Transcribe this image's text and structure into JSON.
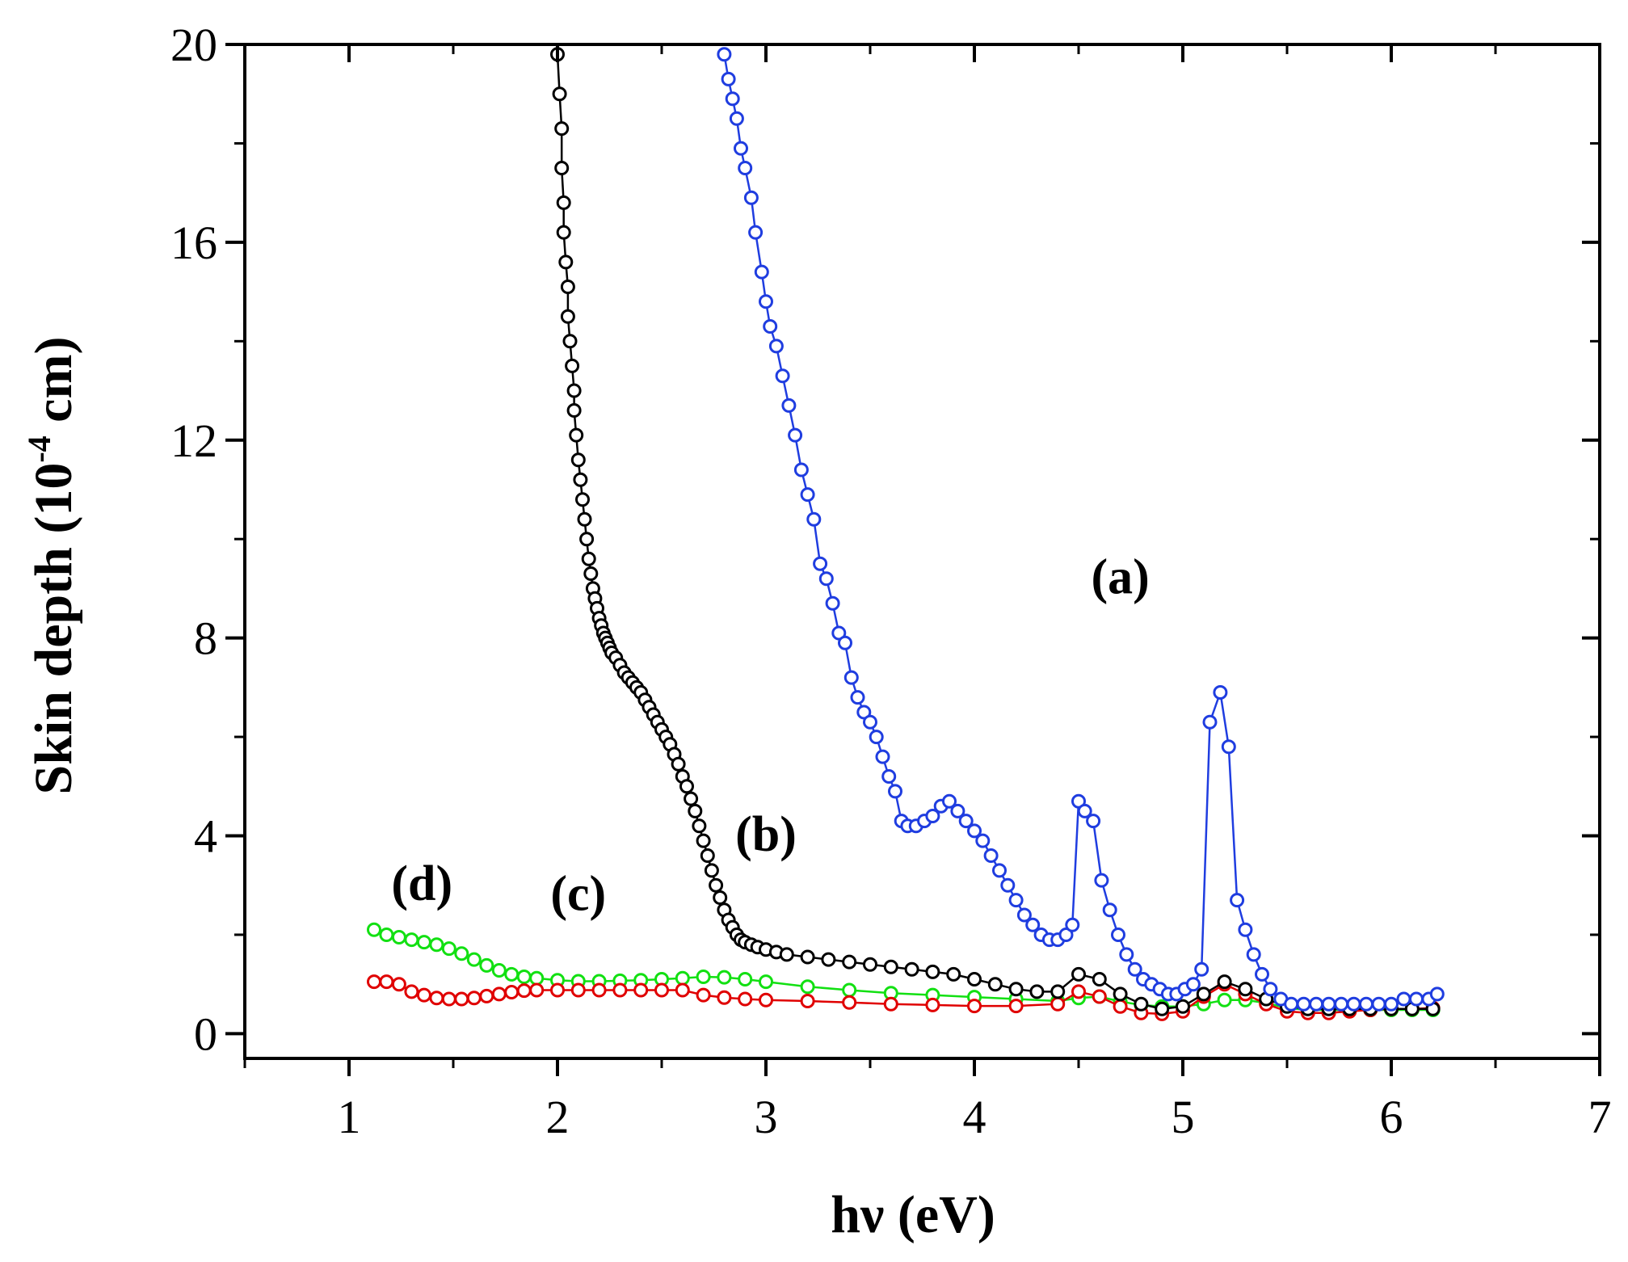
{
  "chart_data": {
    "type": "scatter",
    "title": "",
    "xlabel": "hν (eV)",
    "ylabel_main": "Skin depth (10",
    "ylabel_sup": "-4",
    "ylabel_tail": " cm)",
    "xlim": [
      0.5,
      7
    ],
    "ylim": [
      -0.5,
      20
    ],
    "x_ticks": [
      1,
      2,
      3,
      4,
      5,
      6,
      7
    ],
    "x_tick_labels": [
      "1",
      "2",
      "3",
      "4",
      "5",
      "6",
      "7"
    ],
    "y_ticks": [
      0,
      4,
      8,
      12,
      16,
      20
    ],
    "y_tick_labels": [
      "0",
      "4",
      "8",
      "12",
      "16",
      "20"
    ],
    "grid": false,
    "series": [
      {
        "name": "(a)",
        "color": "#1f3de0",
        "label_pos": [
          4.7,
          8.9
        ],
        "points": [
          [
            2.8,
            19.8
          ],
          [
            2.82,
            19.3
          ],
          [
            2.84,
            18.9
          ],
          [
            2.86,
            18.5
          ],
          [
            2.88,
            17.9
          ],
          [
            2.9,
            17.5
          ],
          [
            2.93,
            16.9
          ],
          [
            2.95,
            16.2
          ],
          [
            2.98,
            15.4
          ],
          [
            3.0,
            14.8
          ],
          [
            3.02,
            14.3
          ],
          [
            3.05,
            13.9
          ],
          [
            3.08,
            13.3
          ],
          [
            3.11,
            12.7
          ],
          [
            3.14,
            12.1
          ],
          [
            3.17,
            11.4
          ],
          [
            3.2,
            10.9
          ],
          [
            3.23,
            10.4
          ],
          [
            3.26,
            9.5
          ],
          [
            3.29,
            9.2
          ],
          [
            3.32,
            8.7
          ],
          [
            3.35,
            8.1
          ],
          [
            3.38,
            7.9
          ],
          [
            3.41,
            7.2
          ],
          [
            3.44,
            6.8
          ],
          [
            3.47,
            6.5
          ],
          [
            3.5,
            6.3
          ],
          [
            3.53,
            6.0
          ],
          [
            3.56,
            5.6
          ],
          [
            3.59,
            5.2
          ],
          [
            3.62,
            4.9
          ],
          [
            3.65,
            4.3
          ],
          [
            3.68,
            4.2
          ],
          [
            3.72,
            4.2
          ],
          [
            3.76,
            4.3
          ],
          [
            3.8,
            4.4
          ],
          [
            3.84,
            4.6
          ],
          [
            3.88,
            4.7
          ],
          [
            3.92,
            4.5
          ],
          [
            3.96,
            4.3
          ],
          [
            4.0,
            4.1
          ],
          [
            4.04,
            3.9
          ],
          [
            4.08,
            3.6
          ],
          [
            4.12,
            3.3
          ],
          [
            4.16,
            3.0
          ],
          [
            4.2,
            2.7
          ],
          [
            4.24,
            2.4
          ],
          [
            4.28,
            2.2
          ],
          [
            4.32,
            2.0
          ],
          [
            4.36,
            1.9
          ],
          [
            4.4,
            1.9
          ],
          [
            4.44,
            2.0
          ],
          [
            4.47,
            2.2
          ],
          [
            4.5,
            4.7
          ],
          [
            4.53,
            4.5
          ],
          [
            4.57,
            4.3
          ],
          [
            4.61,
            3.1
          ],
          [
            4.65,
            2.5
          ],
          [
            4.69,
            2.0
          ],
          [
            4.73,
            1.6
          ],
          [
            4.77,
            1.3
          ],
          [
            4.81,
            1.1
          ],
          [
            4.85,
            1.0
          ],
          [
            4.89,
            0.9
          ],
          [
            4.93,
            0.8
          ],
          [
            4.97,
            0.8
          ],
          [
            5.01,
            0.9
          ],
          [
            5.05,
            1.0
          ],
          [
            5.09,
            1.3
          ],
          [
            5.13,
            6.3
          ],
          [
            5.18,
            6.9
          ],
          [
            5.22,
            5.8
          ],
          [
            5.26,
            2.7
          ],
          [
            5.3,
            2.1
          ],
          [
            5.34,
            1.6
          ],
          [
            5.38,
            1.2
          ],
          [
            5.42,
            0.9
          ],
          [
            5.47,
            0.7
          ],
          [
            5.52,
            0.6
          ],
          [
            5.58,
            0.6
          ],
          [
            5.64,
            0.6
          ],
          [
            5.7,
            0.6
          ],
          [
            5.76,
            0.6
          ],
          [
            5.82,
            0.6
          ],
          [
            5.88,
            0.6
          ],
          [
            5.94,
            0.6
          ],
          [
            6.0,
            0.6
          ],
          [
            6.06,
            0.7
          ],
          [
            6.12,
            0.7
          ],
          [
            6.18,
            0.7
          ],
          [
            6.22,
            0.8
          ]
        ]
      },
      {
        "name": "(b)",
        "color": "#000000",
        "label_pos": [
          3.0,
          3.7
        ],
        "points": [
          [
            2.0,
            19.8
          ],
          [
            2.01,
            19.0
          ],
          [
            2.02,
            18.3
          ],
          [
            2.02,
            17.5
          ],
          [
            2.03,
            16.8
          ],
          [
            2.03,
            16.2
          ],
          [
            2.04,
            15.6
          ],
          [
            2.05,
            15.1
          ],
          [
            2.05,
            14.5
          ],
          [
            2.06,
            14.0
          ],
          [
            2.07,
            13.5
          ],
          [
            2.08,
            13.0
          ],
          [
            2.08,
            12.6
          ],
          [
            2.09,
            12.1
          ],
          [
            2.1,
            11.6
          ],
          [
            2.11,
            11.2
          ],
          [
            2.12,
            10.8
          ],
          [
            2.13,
            10.4
          ],
          [
            2.14,
            10.0
          ],
          [
            2.15,
            9.6
          ],
          [
            2.16,
            9.3
          ],
          [
            2.17,
            9.0
          ],
          [
            2.18,
            8.8
          ],
          [
            2.19,
            8.6
          ],
          [
            2.2,
            8.4
          ],
          [
            2.21,
            8.25
          ],
          [
            2.22,
            8.1
          ],
          [
            2.23,
            8.0
          ],
          [
            2.24,
            7.9
          ],
          [
            2.25,
            7.8
          ],
          [
            2.26,
            7.7
          ],
          [
            2.28,
            7.6
          ],
          [
            2.3,
            7.45
          ],
          [
            2.32,
            7.3
          ],
          [
            2.34,
            7.2
          ],
          [
            2.36,
            7.1
          ],
          [
            2.38,
            7.0
          ],
          [
            2.4,
            6.9
          ],
          [
            2.42,
            6.75
          ],
          [
            2.44,
            6.6
          ],
          [
            2.46,
            6.45
          ],
          [
            2.48,
            6.3
          ],
          [
            2.5,
            6.15
          ],
          [
            2.52,
            6.0
          ],
          [
            2.54,
            5.85
          ],
          [
            2.56,
            5.65
          ],
          [
            2.58,
            5.45
          ],
          [
            2.6,
            5.2
          ],
          [
            2.62,
            5.0
          ],
          [
            2.64,
            4.75
          ],
          [
            2.66,
            4.5
          ],
          [
            2.68,
            4.2
          ],
          [
            2.7,
            3.9
          ],
          [
            2.72,
            3.6
          ],
          [
            2.74,
            3.3
          ],
          [
            2.76,
            3.0
          ],
          [
            2.78,
            2.75
          ],
          [
            2.8,
            2.5
          ],
          [
            2.82,
            2.3
          ],
          [
            2.84,
            2.15
          ],
          [
            2.86,
            2.0
          ],
          [
            2.88,
            1.9
          ],
          [
            2.9,
            1.85
          ],
          [
            2.93,
            1.8
          ],
          [
            2.96,
            1.75
          ],
          [
            3.0,
            1.7
          ],
          [
            3.05,
            1.65
          ],
          [
            3.1,
            1.6
          ],
          [
            3.2,
            1.55
          ],
          [
            3.3,
            1.5
          ],
          [
            3.4,
            1.45
          ],
          [
            3.5,
            1.4
          ],
          [
            3.6,
            1.35
          ],
          [
            3.7,
            1.3
          ],
          [
            3.8,
            1.25
          ],
          [
            3.9,
            1.2
          ],
          [
            4.0,
            1.1
          ],
          [
            4.1,
            1.0
          ],
          [
            4.2,
            0.9
          ],
          [
            4.3,
            0.85
          ],
          [
            4.4,
            0.85
          ],
          [
            4.5,
            1.2
          ],
          [
            4.6,
            1.1
          ],
          [
            4.7,
            0.8
          ],
          [
            4.8,
            0.6
          ],
          [
            4.9,
            0.5
          ],
          [
            5.0,
            0.55
          ],
          [
            5.1,
            0.8
          ],
          [
            5.2,
            1.05
          ],
          [
            5.3,
            0.9
          ],
          [
            5.4,
            0.7
          ],
          [
            5.5,
            0.55
          ],
          [
            5.6,
            0.5
          ],
          [
            5.7,
            0.5
          ],
          [
            5.8,
            0.5
          ],
          [
            5.9,
            0.5
          ],
          [
            6.0,
            0.5
          ],
          [
            6.1,
            0.5
          ],
          [
            6.2,
            0.5
          ]
        ]
      },
      {
        "name": "(c)",
        "color": "#e00000",
        "label_pos": [
          2.1,
          2.5
        ],
        "points": [
          [
            1.12,
            1.05
          ],
          [
            1.18,
            1.05
          ],
          [
            1.24,
            1.0
          ],
          [
            1.3,
            0.85
          ],
          [
            1.36,
            0.78
          ],
          [
            1.42,
            0.72
          ],
          [
            1.48,
            0.7
          ],
          [
            1.54,
            0.7
          ],
          [
            1.6,
            0.72
          ],
          [
            1.66,
            0.76
          ],
          [
            1.72,
            0.8
          ],
          [
            1.78,
            0.84
          ],
          [
            1.84,
            0.87
          ],
          [
            1.9,
            0.88
          ],
          [
            2.0,
            0.88
          ],
          [
            2.1,
            0.88
          ],
          [
            2.2,
            0.88
          ],
          [
            2.3,
            0.88
          ],
          [
            2.4,
            0.88
          ],
          [
            2.5,
            0.88
          ],
          [
            2.6,
            0.88
          ],
          [
            2.7,
            0.78
          ],
          [
            2.8,
            0.73
          ],
          [
            2.9,
            0.7
          ],
          [
            3.0,
            0.68
          ],
          [
            3.2,
            0.66
          ],
          [
            3.4,
            0.63
          ],
          [
            3.6,
            0.6
          ],
          [
            3.8,
            0.58
          ],
          [
            4.0,
            0.56
          ],
          [
            4.2,
            0.56
          ],
          [
            4.4,
            0.6
          ],
          [
            4.5,
            0.85
          ],
          [
            4.6,
            0.75
          ],
          [
            4.7,
            0.55
          ],
          [
            4.8,
            0.42
          ],
          [
            4.9,
            0.4
          ],
          [
            5.0,
            0.45
          ],
          [
            5.1,
            0.75
          ],
          [
            5.2,
            1.0
          ],
          [
            5.3,
            0.8
          ],
          [
            5.4,
            0.6
          ],
          [
            5.5,
            0.45
          ],
          [
            5.6,
            0.42
          ],
          [
            5.7,
            0.42
          ],
          [
            5.8,
            0.45
          ],
          [
            5.9,
            0.48
          ],
          [
            6.0,
            0.5
          ],
          [
            6.1,
            0.5
          ],
          [
            6.2,
            0.52
          ]
        ]
      },
      {
        "name": "(d)",
        "color": "#12e012",
        "label_pos": [
          1.35,
          2.7
        ],
        "points": [
          [
            1.12,
            2.1
          ],
          [
            1.18,
            2.0
          ],
          [
            1.24,
            1.95
          ],
          [
            1.3,
            1.9
          ],
          [
            1.36,
            1.85
          ],
          [
            1.42,
            1.8
          ],
          [
            1.48,
            1.72
          ],
          [
            1.54,
            1.62
          ],
          [
            1.6,
            1.5
          ],
          [
            1.66,
            1.38
          ],
          [
            1.72,
            1.28
          ],
          [
            1.78,
            1.2
          ],
          [
            1.84,
            1.15
          ],
          [
            1.9,
            1.12
          ],
          [
            2.0,
            1.08
          ],
          [
            2.1,
            1.06
          ],
          [
            2.2,
            1.06
          ],
          [
            2.3,
            1.07
          ],
          [
            2.4,
            1.08
          ],
          [
            2.5,
            1.1
          ],
          [
            2.6,
            1.12
          ],
          [
            2.7,
            1.15
          ],
          [
            2.8,
            1.14
          ],
          [
            2.9,
            1.1
          ],
          [
            3.0,
            1.05
          ],
          [
            3.2,
            0.95
          ],
          [
            3.4,
            0.88
          ],
          [
            3.6,
            0.82
          ],
          [
            3.8,
            0.78
          ],
          [
            4.0,
            0.74
          ],
          [
            4.2,
            0.7
          ],
          [
            4.4,
            0.66
          ],
          [
            4.5,
            0.72
          ],
          [
            4.6,
            0.75
          ],
          [
            4.7,
            0.65
          ],
          [
            4.8,
            0.58
          ],
          [
            4.9,
            0.55
          ],
          [
            5.0,
            0.55
          ],
          [
            5.1,
            0.6
          ],
          [
            5.2,
            0.68
          ],
          [
            5.3,
            0.68
          ],
          [
            5.4,
            0.62
          ],
          [
            5.5,
            0.52
          ],
          [
            5.6,
            0.48
          ],
          [
            5.7,
            0.48
          ],
          [
            5.8,
            0.48
          ],
          [
            5.9,
            0.48
          ],
          [
            6.0,
            0.48
          ],
          [
            6.1,
            0.48
          ],
          [
            6.2,
            0.48
          ]
        ]
      }
    ]
  }
}
